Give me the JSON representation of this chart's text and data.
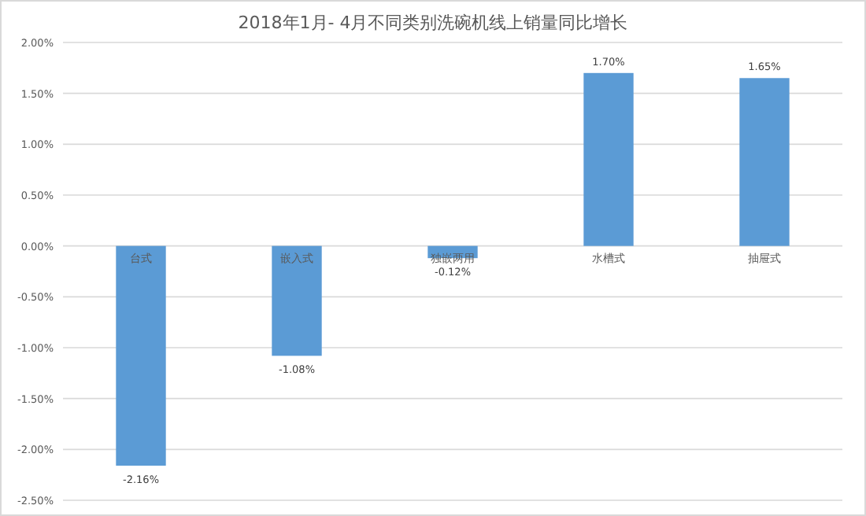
{
  "chart_data": {
    "type": "bar",
    "title": "2018年1月- 4月不同类别洗碗机线上销量同比增长",
    "categories": [
      "台式",
      "嵌入式",
      "独嵌两用",
      "水槽式",
      "抽屉式"
    ],
    "values": [
      -2.16,
      -1.08,
      -0.12,
      1.7,
      1.65
    ],
    "value_labels": [
      "-2.16%",
      "-1.08%",
      "-0.12%",
      "1.70%",
      "1.65%"
    ],
    "color": "#5b9bd5",
    "ylim": [
      -2.5,
      2
    ],
    "yticks": [
      {
        "value": -2.5,
        "label": "-2.50%"
      },
      {
        "value": -2,
        "label": "-2.00%"
      },
      {
        "value": -1.5,
        "label": "-1.50%"
      },
      {
        "value": -1,
        "label": "-1.00%"
      },
      {
        "value": -0.5,
        "label": "-0.50%"
      },
      {
        "value": 0,
        "label": "0.00%"
      },
      {
        "value": 0.5,
        "label": "0.50%"
      },
      {
        "value": 1,
        "label": "1.00%"
      },
      {
        "value": 1.5,
        "label": "1.50%"
      },
      {
        "value": 2,
        "label": "2.00%"
      }
    ],
    "grid": "y"
  }
}
